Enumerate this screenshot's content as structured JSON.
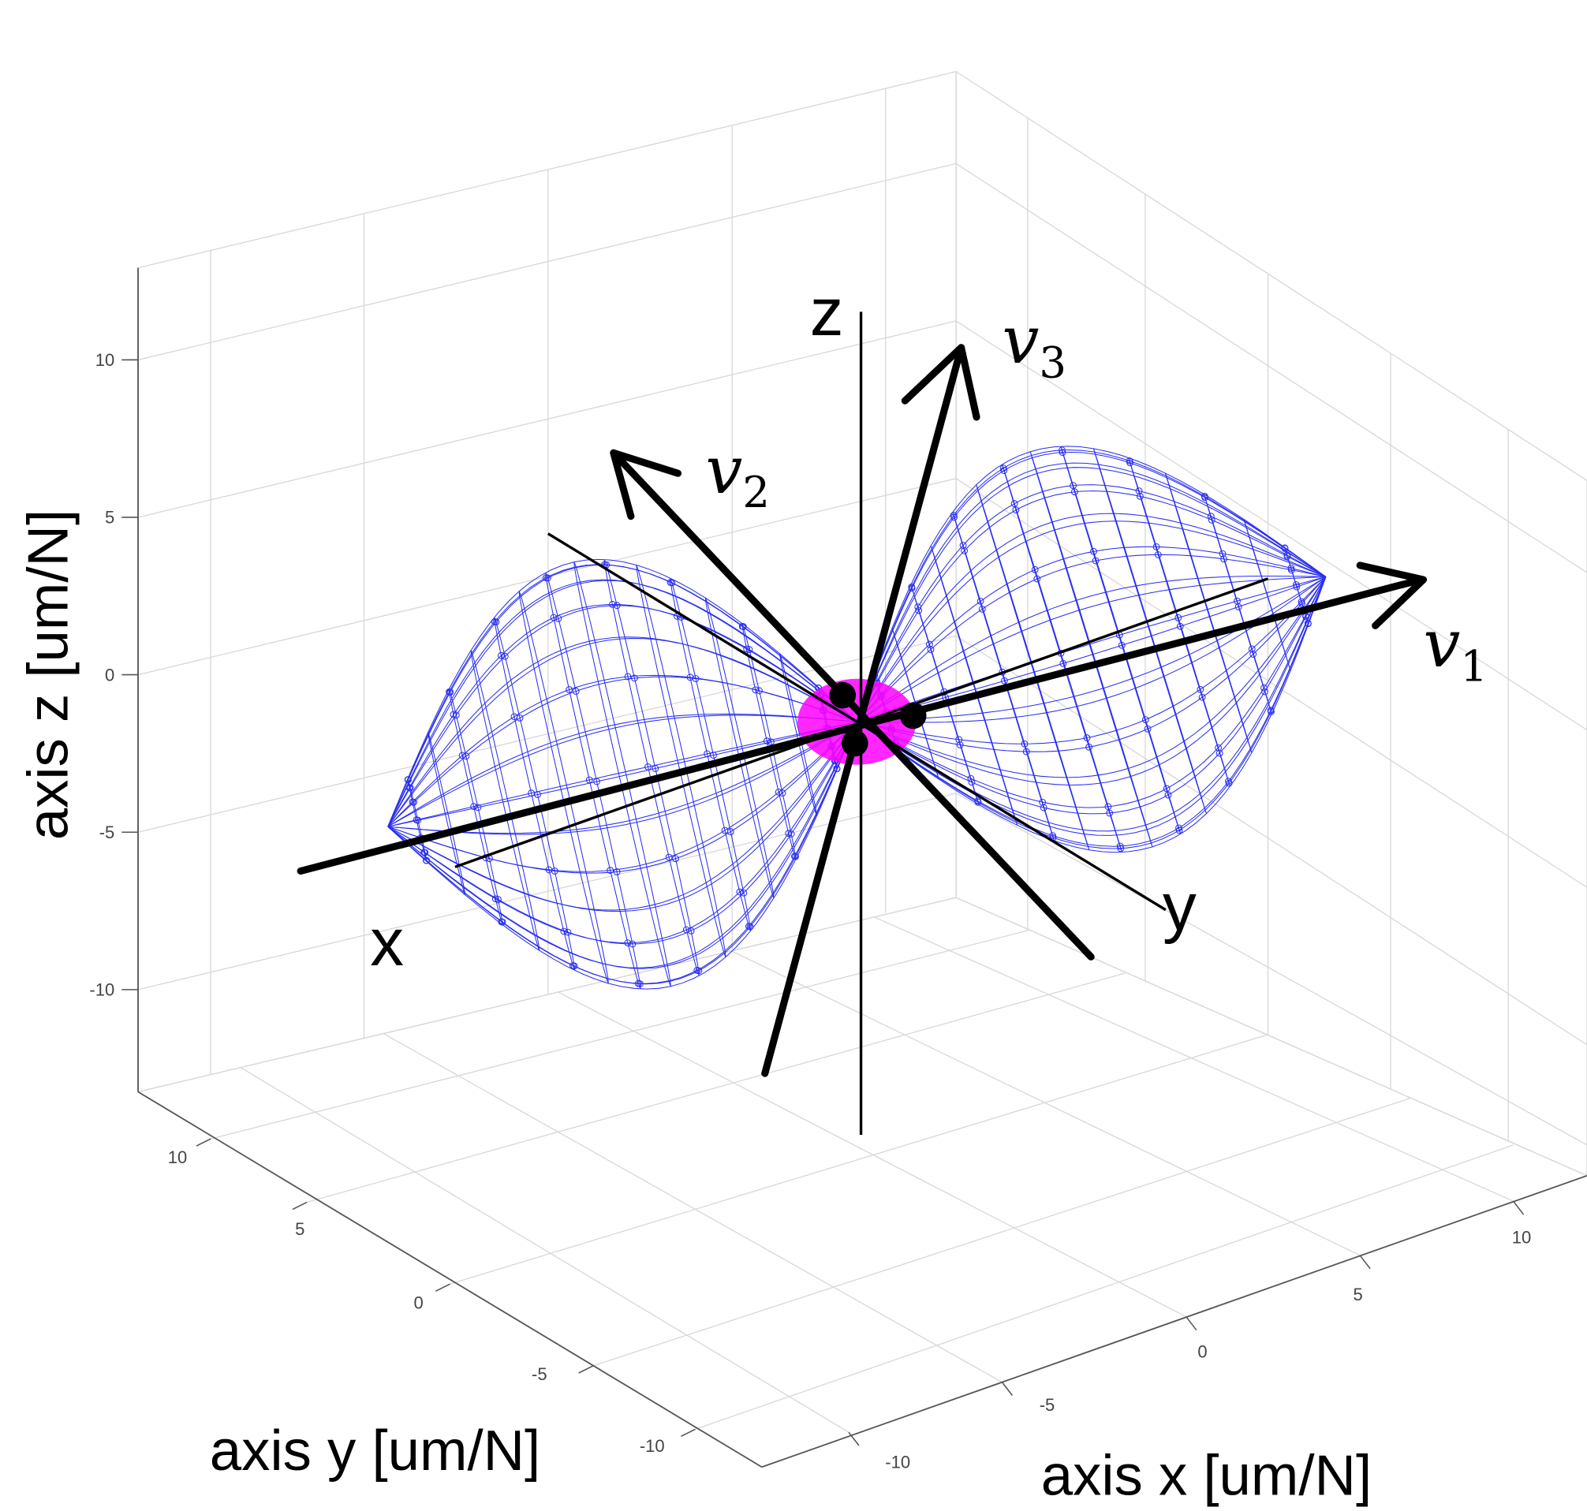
{
  "chart_data": {
    "type": "3d-wireframe",
    "xlabel": "axis x [um/N]",
    "ylabel": "axis y [um/N]",
    "zlabel": "axis z [um/N]",
    "xlim": [
      -12,
      12
    ],
    "ylim": [
      -12,
      12
    ],
    "zlim": [
      -12,
      12
    ],
    "xticks": [
      "-10",
      "-5",
      "0",
      "5",
      "10"
    ],
    "yticks": [
      "10",
      "5",
      "0",
      "-5",
      "-10"
    ],
    "zticks": [
      "10",
      "5",
      "0",
      "-5",
      "-10"
    ],
    "grid": true,
    "surface_color": "#2a2ff0",
    "center_color": "#ff00ff",
    "annotation_color": "#000000",
    "axis_labels": {
      "x": "x",
      "y": "y",
      "z": "z"
    },
    "vectors": [
      {
        "symbol": "v",
        "subscript": "1"
      },
      {
        "symbol": "v",
        "subscript": "2"
      },
      {
        "symbol": "v",
        "subscript": "3"
      }
    ]
  }
}
